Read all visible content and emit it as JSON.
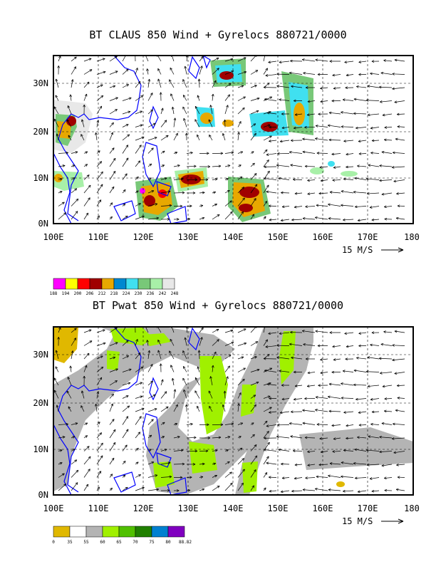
{
  "panels": [
    {
      "title": "BT CLAUS 850 Wind + Gyrelocs 880721/0000",
      "x_ticks": [
        "100E",
        "110E",
        "120E",
        "130E",
        "140E",
        "150E",
        "160E",
        "170E",
        "180"
      ],
      "y_ticks": [
        "0N",
        "10N",
        "20N",
        "30N"
      ],
      "scale_label": "15 M/S",
      "colorbar": {
        "labels": [
          "188",
          "194",
          "200",
          "206",
          "212",
          "218",
          "224",
          "230",
          "236",
          "242",
          "248"
        ],
        "colors": [
          "#ff00ff",
          "#ffff00",
          "#ff0000",
          "#a00000",
          "#e8a800",
          "#0088d0",
          "#40e0f0",
          "#78c878",
          "#a8f0a8",
          "#e8e8e8"
        ]
      }
    },
    {
      "title": "BT Pwat 850 Wind + Gyrelocs 880721/0000",
      "x_ticks": [
        "100E",
        "110E",
        "120E",
        "130E",
        "140E",
        "150E",
        "160E",
        "170E",
        "180"
      ],
      "y_ticks": [
        "0N",
        "10N",
        "20N",
        "30N"
      ],
      "scale_label": "15 M/S",
      "colorbar": {
        "labels": [
          "0",
          "35",
          "55",
          "60",
          "65",
          "70",
          "75",
          "80",
          "88.82"
        ],
        "colors": [
          "#e0b800",
          "#ffffff",
          "#b4b4b4",
          "#a0f000",
          "#50c000",
          "#208000",
          "#0080d0",
          "#8000c0"
        ]
      }
    }
  ]
}
